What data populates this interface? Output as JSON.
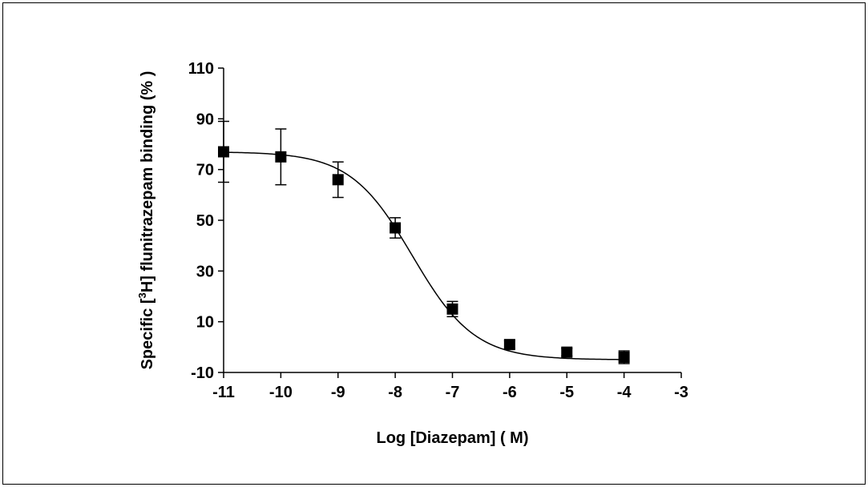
{
  "chart_data": {
    "type": "scatter",
    "title": "",
    "xlabel": "Log [Diazepam] ( M)",
    "ylabel": {
      "prefix": "Specific [",
      "superscript": "3",
      "suffix": "H] flunitrazepam binding (% )"
    },
    "xlim": [
      -11,
      -3
    ],
    "ylim": [
      -10,
      110
    ],
    "x_ticks": [
      -11,
      -10,
      -9,
      -8,
      -7,
      -6,
      -5,
      -4,
      -3
    ],
    "y_ticks": [
      -10,
      10,
      30,
      50,
      70,
      90,
      110
    ],
    "x_tick_labels": [
      "-11",
      "-10",
      "-9",
      "-8",
      "-7",
      "-6",
      "-5",
      "-4",
      "-3"
    ],
    "y_tick_labels": [
      "-10",
      "10",
      "30",
      "50",
      "70",
      "90",
      "110"
    ],
    "grid": false,
    "series": [
      {
        "marker": "square",
        "color": "#000000",
        "x": [
          -11,
          -10,
          -9,
          -8,
          -7,
          -6,
          -5,
          -4
        ],
        "y": [
          77,
          75,
          66,
          47,
          15,
          1,
          -2,
          -4
        ],
        "error": [
          12,
          11,
          7,
          4,
          3,
          1.5,
          1.5,
          2.5
        ]
      }
    ],
    "fit_curve": {
      "model": "sigmoidal dose-response",
      "top": 77,
      "bottom": -5,
      "log_ec50": -7.7,
      "hill_slope": -0.8
    }
  }
}
